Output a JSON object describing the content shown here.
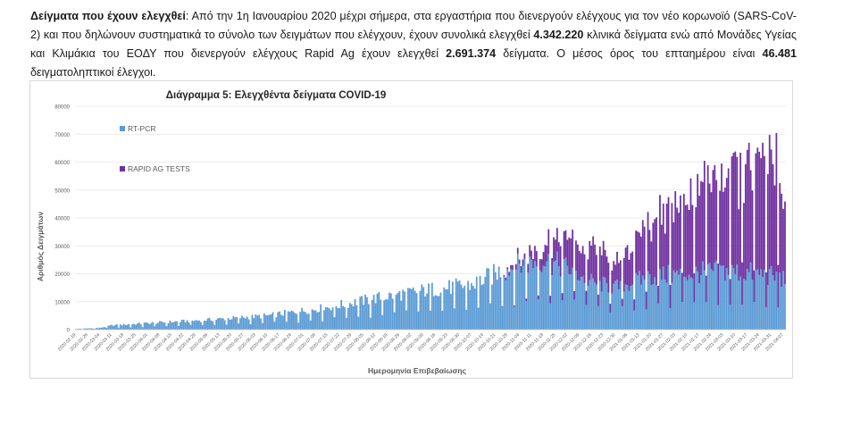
{
  "intro": {
    "lead": "Δείγματα που έχουν ελεγχθεί",
    "colon": ":",
    "part1": " Από την 1η Ιανουαρίου 2020 μέχρι σήμερα, στα εργαστήρια που διενεργούν ελέγχους για τον νέο κορωνοϊό (SARS-CoV-2) και που δηλώνουν συστηματικά το σύνολο των δειγμάτων που ελέγχουν, έχουν συνολικά ελεγχθεί ",
    "clinical_total": "4.342.220",
    "part2": " κλινικά δείγματα ενώ από Μονάδες Υγείας και Κλιμάκια του ΕΟΔΥ που διενεργούν ελέγχους Rapid Ag έχουν ελεγχθεί ",
    "rapid_total": "2.691.374",
    "part3": " δείγματα. Ο μέσος όρος του επταημέρου είναι ",
    "weekly_avg": "46.481",
    "part4": " δειγματοληπτικοί έλεγχοι."
  },
  "colors": {
    "pcr": "#5b9bd5",
    "rapid": "#7030a0",
    "grid": "#e6e6e6",
    "axis_text": "#595959"
  },
  "chart_data": {
    "type": "bar",
    "stacked": true,
    "title": "Διάγραμμα 5: Ελεγχθέντα δείγματα COVID-19",
    "xlabel": "Ημερομηνία Επιβεβαίωσης",
    "ylabel": "Αριθμός Δειγμάτων",
    "ylim": [
      0,
      80000
    ],
    "yticks": [
      0,
      10000,
      20000,
      30000,
      40000,
      50000,
      60000,
      70000,
      80000
    ],
    "grid": true,
    "legend_placement": "upper-left inside plot",
    "x_start": "2020-02-19",
    "x_end": "2021-04-08",
    "x_tick_labels": [
      "2020-02-19",
      "2020-02-26",
      "2020-03-04",
      "2020-03-11",
      "2020-03-18",
      "2020-03-25",
      "2020-04-01",
      "2020-04-08",
      "2020-04-15",
      "2020-04-22",
      "2020-04-29",
      "2020-05-06",
      "2020-05-13",
      "2020-05-20",
      "2020-05-27",
      "2020-06-03",
      "2020-06-10",
      "2020-06-17",
      "2020-06-24",
      "2020-07-01",
      "2020-07-08",
      "2020-07-15",
      "2020-07-22",
      "2020-07-29",
      "2020-08-05",
      "2020-08-12",
      "2020-08-19",
      "2020-08-26",
      "2020-09-02",
      "2020-09-09",
      "2020-09-16",
      "2020-09-23",
      "2020-09-30",
      "2020-10-07",
      "2020-10-14",
      "2020-10-21",
      "2020-10-28",
      "2020-11-04",
      "2020-11-11",
      "2020-11-18",
      "2020-11-25",
      "2020-12-02",
      "2020-12-09",
      "2020-12-16",
      "2020-12-23",
      "2020-12-30",
      "2021-01-06",
      "2021-01-13",
      "2021-01-20",
      "2021-01-27",
      "2021-02-03",
      "2021-02-10",
      "2021-02-17",
      "2021-02-24",
      "2021-03-03",
      "2021-03-10",
      "2021-03-17",
      "2021-03-24",
      "2021-03-31",
      "2021-04-07"
    ],
    "series": [
      {
        "name": "RT-PCR",
        "color": "#5b9bd5",
        "anchors": [
          [
            "2020-02-19",
            200
          ],
          [
            "2020-03-04",
            600
          ],
          [
            "2020-03-11",
            1500
          ],
          [
            "2020-04-01",
            2300
          ],
          [
            "2020-05-06",
            3500
          ],
          [
            "2020-06-10",
            5000
          ],
          [
            "2020-07-15",
            8000
          ],
          [
            "2020-08-19",
            12000
          ],
          [
            "2020-09-09",
            14000
          ],
          [
            "2020-10-07",
            16000
          ],
          [
            "2020-10-21",
            20000
          ],
          [
            "2020-11-04",
            23000
          ],
          [
            "2020-11-18",
            25000
          ],
          [
            "2020-12-02",
            22000
          ],
          [
            "2020-12-16",
            17000
          ],
          [
            "2020-12-30",
            15000
          ],
          [
            "2021-01-20",
            19000
          ],
          [
            "2021-02-10",
            20000
          ],
          [
            "2021-03-03",
            21000
          ],
          [
            "2021-03-24",
            20000
          ],
          [
            "2021-04-08",
            18000
          ]
        ]
      },
      {
        "name": "RAPID AG TESTS",
        "color": "#7030a0",
        "start": "2020-10-21",
        "anchors": [
          [
            "2020-10-21",
            0
          ],
          [
            "2020-11-04",
            2000
          ],
          [
            "2020-11-18",
            6000
          ],
          [
            "2020-12-02",
            10000
          ],
          [
            "2020-12-16",
            13000
          ],
          [
            "2020-12-30",
            8000
          ],
          [
            "2021-01-20",
            18000
          ],
          [
            "2021-02-10",
            28000
          ],
          [
            "2021-03-03",
            35000
          ],
          [
            "2021-03-24",
            37000
          ],
          [
            "2021-04-02",
            42000
          ],
          [
            "2021-04-08",
            28000
          ]
        ]
      }
    ]
  }
}
